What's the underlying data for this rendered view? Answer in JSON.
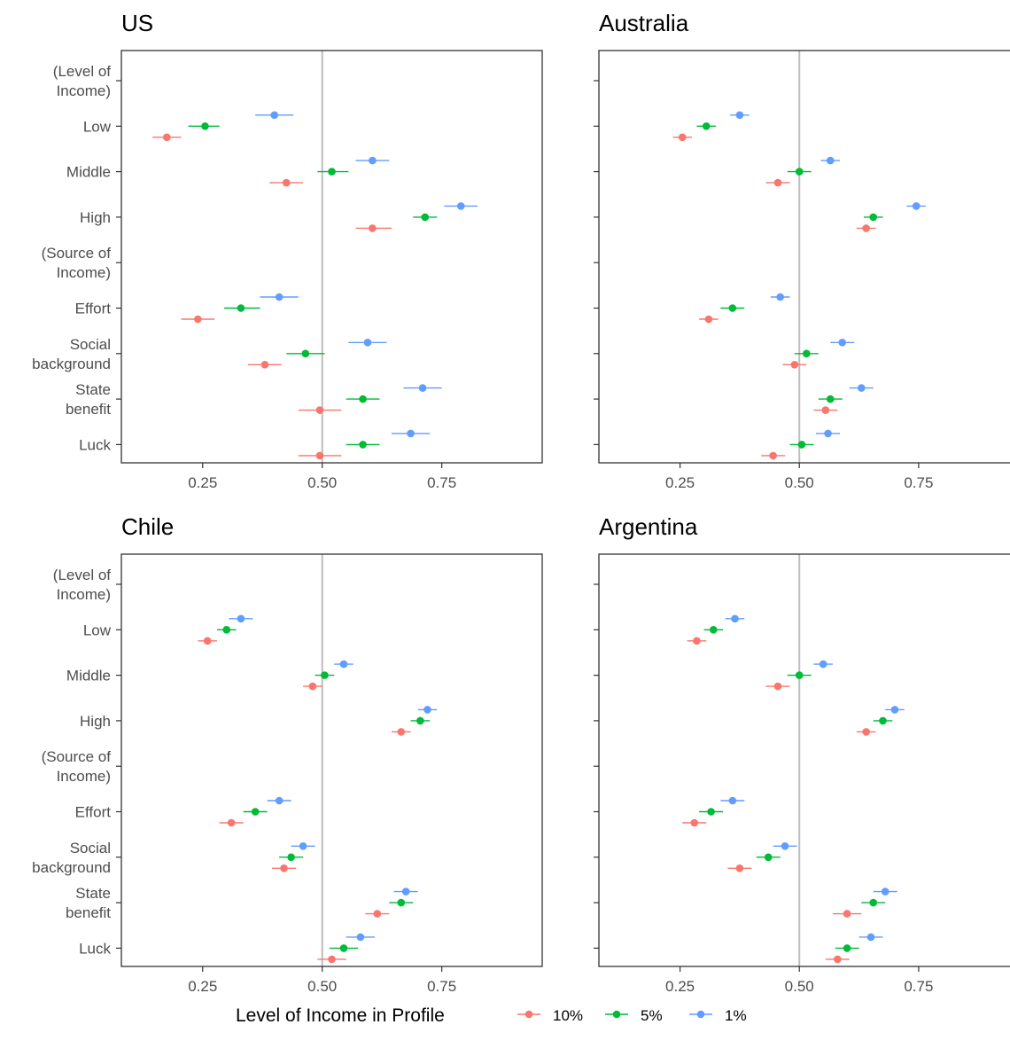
{
  "chart_data": {
    "type": "scatter",
    "subtype": "dot-whisker",
    "categories": [
      "(Level of Income)",
      "Low",
      "Middle",
      "High",
      "(Source of Income)",
      "Effort",
      "Social background",
      "State benefit",
      "Luck"
    ],
    "category_lines": [
      [
        "(Level of",
        "Income)"
      ],
      [
        "Low"
      ],
      [
        "Middle"
      ],
      [
        "High"
      ],
      [
        "(Source of",
        "Income)"
      ],
      [
        "Effort"
      ],
      [
        "Social",
        "background"
      ],
      [
        "State",
        "benefit"
      ],
      [
        "Luck"
      ]
    ],
    "xticks": [
      0.25,
      0.5,
      0.75
    ],
    "xtick_labels": [
      "0.25",
      "0.50",
      "0.75"
    ],
    "xlim": [
      0.08,
      0.96
    ],
    "reference_line": 0.5,
    "legend": {
      "title": "Level of Income in Profile",
      "position": "bottom",
      "entries": [
        {
          "label": "10%",
          "color": "#F8766D"
        },
        {
          "label": "5%",
          "color": "#00BA38"
        },
        {
          "label": "1%",
          "color": "#619CFF"
        }
      ]
    },
    "panels": [
      {
        "title": "US",
        "series": [
          {
            "name": "10%",
            "values": [
              null,
              0.175,
              0.425,
              0.605,
              null,
              0.24,
              0.38,
              0.495,
              0.495
            ],
            "lower": [
              null,
              0.145,
              0.39,
              0.57,
              null,
              0.205,
              0.345,
              0.45,
              0.45
            ],
            "upper": [
              null,
              0.205,
              0.46,
              0.645,
              null,
              0.275,
              0.415,
              0.54,
              0.54
            ]
          },
          {
            "name": "5%",
            "values": [
              null,
              0.255,
              0.52,
              0.715,
              null,
              0.33,
              0.465,
              0.585,
              0.585
            ],
            "lower": [
              null,
              0.22,
              0.49,
              0.69,
              null,
              0.295,
              0.425,
              0.55,
              0.55
            ],
            "upper": [
              null,
              0.285,
              0.555,
              0.74,
              null,
              0.37,
              0.505,
              0.62,
              0.62
            ]
          },
          {
            "name": "1%",
            "values": [
              null,
              0.4,
              0.605,
              0.79,
              null,
              0.41,
              0.595,
              0.71,
              0.685
            ],
            "lower": [
              null,
              0.36,
              0.57,
              0.755,
              null,
              0.37,
              0.555,
              0.67,
              0.645
            ],
            "upper": [
              null,
              0.44,
              0.64,
              0.825,
              null,
              0.45,
              0.635,
              0.75,
              0.725
            ]
          }
        ]
      },
      {
        "title": "Australia",
        "series": [
          {
            "name": "10%",
            "values": [
              null,
              0.255,
              0.455,
              0.64,
              null,
              0.31,
              0.49,
              0.555,
              0.445
            ],
            "lower": [
              null,
              0.235,
              0.43,
              0.62,
              null,
              0.29,
              0.465,
              0.53,
              0.42
            ],
            "upper": [
              null,
              0.275,
              0.48,
              0.66,
              null,
              0.33,
              0.515,
              0.58,
              0.47
            ]
          },
          {
            "name": "5%",
            "values": [
              null,
              0.305,
              0.5,
              0.655,
              null,
              0.36,
              0.515,
              0.565,
              0.505
            ],
            "lower": [
              null,
              0.285,
              0.475,
              0.635,
              null,
              0.335,
              0.49,
              0.54,
              0.48
            ],
            "upper": [
              null,
              0.325,
              0.525,
              0.675,
              null,
              0.385,
              0.54,
              0.59,
              0.53
            ]
          },
          {
            "name": "1%",
            "values": [
              null,
              0.375,
              0.565,
              0.745,
              null,
              0.46,
              0.59,
              0.63,
              0.56
            ],
            "lower": [
              null,
              0.355,
              0.545,
              0.725,
              null,
              0.44,
              0.565,
              0.605,
              0.535
            ],
            "upper": [
              null,
              0.395,
              0.585,
              0.765,
              null,
              0.48,
              0.615,
              0.655,
              0.585
            ]
          }
        ]
      },
      {
        "title": "Chile",
        "series": [
          {
            "name": "10%",
            "values": [
              null,
              0.26,
              0.48,
              0.665,
              null,
              0.31,
              0.42,
              0.615,
              0.52
            ],
            "lower": [
              null,
              0.24,
              0.46,
              0.645,
              null,
              0.285,
              0.395,
              0.59,
              0.49
            ],
            "upper": [
              null,
              0.28,
              0.5,
              0.685,
              null,
              0.335,
              0.445,
              0.64,
              0.55
            ]
          },
          {
            "name": "5%",
            "values": [
              null,
              0.3,
              0.505,
              0.705,
              null,
              0.36,
              0.435,
              0.665,
              0.545
            ],
            "lower": [
              null,
              0.28,
              0.485,
              0.685,
              null,
              0.335,
              0.41,
              0.64,
              0.515
            ],
            "upper": [
              null,
              0.32,
              0.525,
              0.725,
              null,
              0.385,
              0.46,
              0.69,
              0.575
            ]
          },
          {
            "name": "1%",
            "values": [
              null,
              0.33,
              0.545,
              0.72,
              null,
              0.41,
              0.46,
              0.675,
              0.58
            ],
            "lower": [
              null,
              0.305,
              0.525,
              0.7,
              null,
              0.385,
              0.435,
              0.65,
              0.55
            ],
            "upper": [
              null,
              0.355,
              0.565,
              0.74,
              null,
              0.435,
              0.485,
              0.7,
              0.61
            ]
          }
        ]
      },
      {
        "title": "Argentina",
        "series": [
          {
            "name": "10%",
            "values": [
              null,
              0.285,
              0.455,
              0.64,
              null,
              0.28,
              0.375,
              0.6,
              0.58
            ],
            "lower": [
              null,
              0.265,
              0.43,
              0.62,
              null,
              0.255,
              0.35,
              0.57,
              0.555
            ],
            "upper": [
              null,
              0.305,
              0.48,
              0.66,
              null,
              0.305,
              0.4,
              0.63,
              0.605
            ]
          },
          {
            "name": "5%",
            "values": [
              null,
              0.32,
              0.5,
              0.675,
              null,
              0.315,
              0.435,
              0.655,
              0.6
            ],
            "lower": [
              null,
              0.3,
              0.475,
              0.655,
              null,
              0.29,
              0.41,
              0.63,
              0.575
            ],
            "upper": [
              null,
              0.34,
              0.525,
              0.695,
              null,
              0.34,
              0.46,
              0.68,
              0.625
            ]
          },
          {
            "name": "1%",
            "values": [
              null,
              0.365,
              0.55,
              0.7,
              null,
              0.36,
              0.47,
              0.68,
              0.65
            ],
            "lower": [
              null,
              0.345,
              0.53,
              0.68,
              null,
              0.335,
              0.445,
              0.655,
              0.625
            ],
            "upper": [
              null,
              0.385,
              0.57,
              0.72,
              null,
              0.385,
              0.495,
              0.705,
              0.675
            ]
          }
        ]
      }
    ]
  }
}
